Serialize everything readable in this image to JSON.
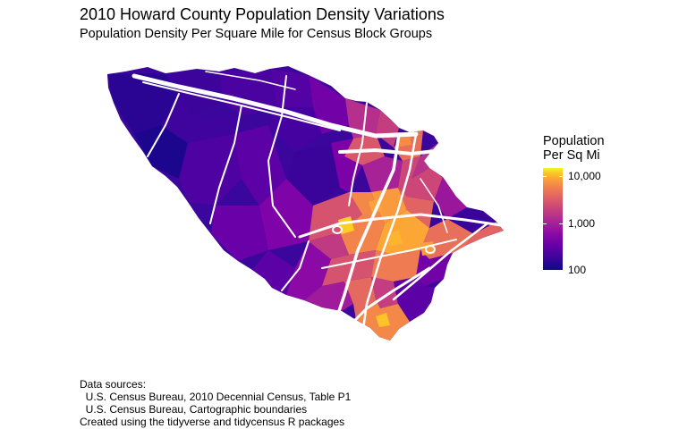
{
  "title": "2010 Howard County Population Density Variations",
  "subtitle": "Population Density Per Square Mile for Census Block Groups",
  "legend": {
    "title_line1": "Population",
    "title_line2": "Per Sq Mi",
    "scale": "log",
    "colormap": "plasma",
    "range": [
      100,
      15000
    ],
    "ticks": [
      {
        "value": 10000,
        "label": "10,000"
      },
      {
        "value": 1000,
        "label": "1,000"
      },
      {
        "value": 100,
        "label": "100"
      }
    ]
  },
  "caption": {
    "line1": "Data sources:",
    "line2": "  U.S. Census Bureau, 2010 Decennial Census, Table P1",
    "line3": "  U.S. Census Bureau, Cartographic boundaries",
    "line4": "Created using the tidyverse and tidycensus R packages"
  },
  "colors": {
    "low": "#0d0887",
    "mid": "#b12a90",
    "high": "#f0f921",
    "roads": "#ffffff"
  }
}
